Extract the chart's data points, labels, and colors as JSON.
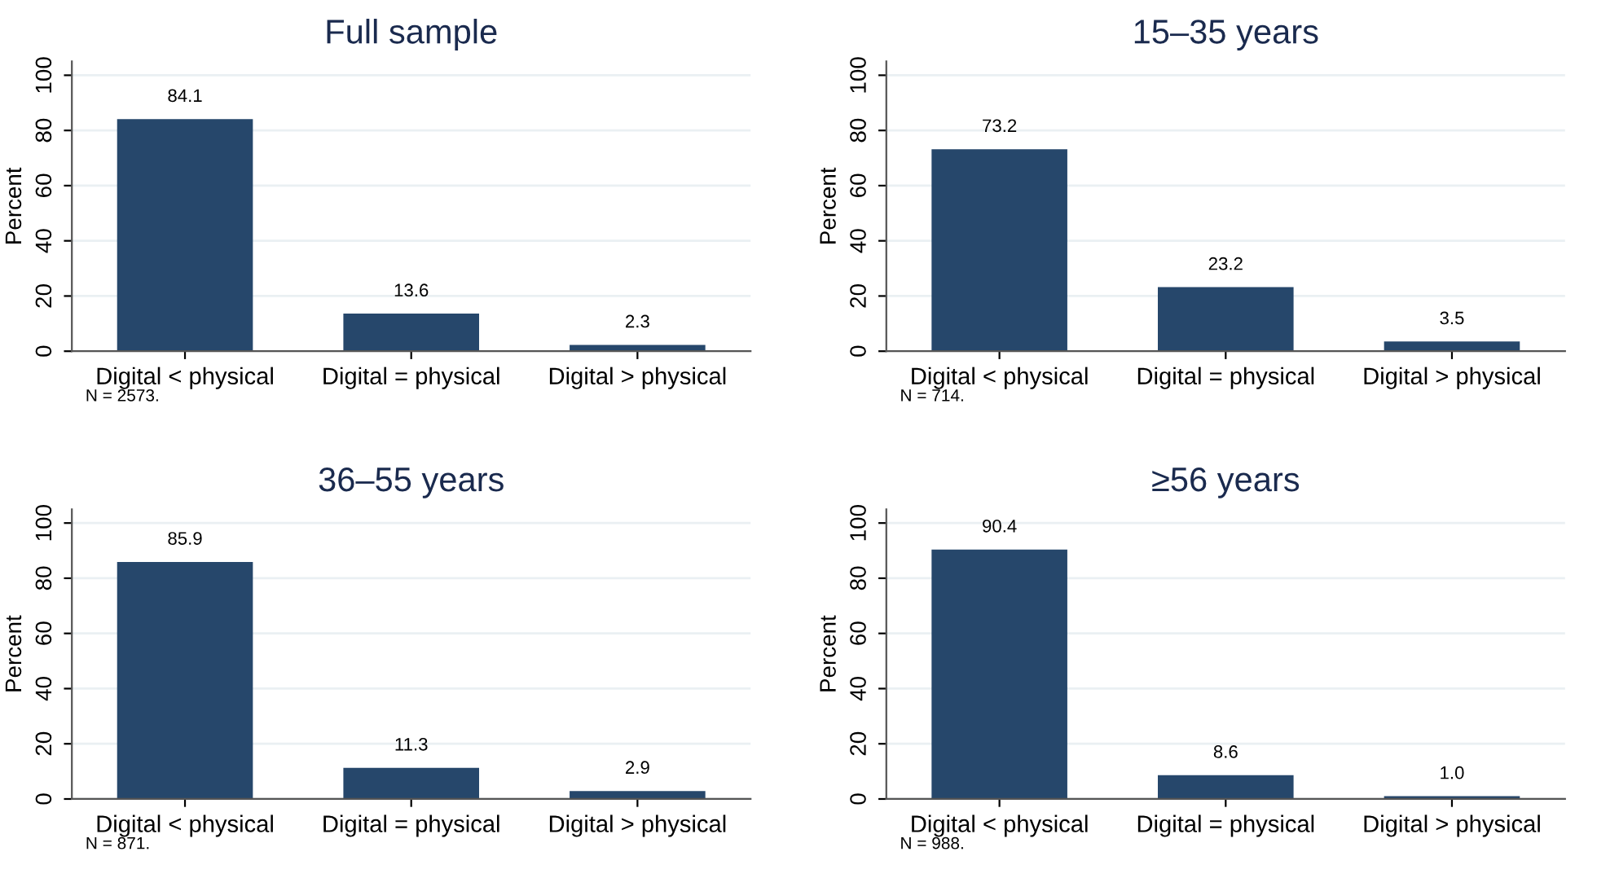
{
  "chart_data": [
    {
      "type": "bar",
      "title": "Full sample",
      "ylabel": "Percent",
      "categories": [
        "Digital < physical",
        "Digital = physical",
        "Digital > physical"
      ],
      "values": [
        84.1,
        13.6,
        2.3
      ],
      "value_labels": [
        "84.1",
        "13.6",
        "2.3"
      ],
      "color": "#26476b",
      "ylim": [
        0,
        105
      ],
      "yticks": [
        0,
        20,
        40,
        60,
        80,
        100
      ],
      "grid": "y",
      "annotations": [
        "N = 2573."
      ]
    },
    {
      "type": "bar",
      "title": "15–35 years",
      "ylabel": "Percent",
      "categories": [
        "Digital < physical",
        "Digital = physical",
        "Digital > physical"
      ],
      "values": [
        73.2,
        23.2,
        3.5
      ],
      "value_labels": [
        "73.2",
        "23.2",
        "3.5"
      ],
      "color": "#26476b",
      "ylim": [
        0,
        105
      ],
      "yticks": [
        0,
        20,
        40,
        60,
        80,
        100
      ],
      "grid": "y",
      "annotations": [
        "N = 714."
      ]
    },
    {
      "type": "bar",
      "title": "36–55 years",
      "ylabel": "Percent",
      "categories": [
        "Digital < physical",
        "Digital = physical",
        "Digital > physical"
      ],
      "values": [
        85.9,
        11.3,
        2.9
      ],
      "value_labels": [
        "85.9",
        "11.3",
        "2.9"
      ],
      "color": "#26476b",
      "ylim": [
        0,
        105
      ],
      "yticks": [
        0,
        20,
        40,
        60,
        80,
        100
      ],
      "grid": "y",
      "annotations": [
        "N = 871."
      ]
    },
    {
      "type": "bar",
      "title": "≥56 years",
      "ylabel": "Percent",
      "categories": [
        "Digital < physical",
        "Digital = physical",
        "Digital > physical"
      ],
      "values": [
        90.4,
        8.6,
        1.0
      ],
      "value_labels": [
        "90.4",
        "8.6",
        "1.0"
      ],
      "color": "#26476b",
      "ylim": [
        0,
        105
      ],
      "yticks": [
        0,
        20,
        40,
        60,
        80,
        100
      ],
      "grid": "y",
      "annotations": [
        "N = 988."
      ]
    }
  ]
}
